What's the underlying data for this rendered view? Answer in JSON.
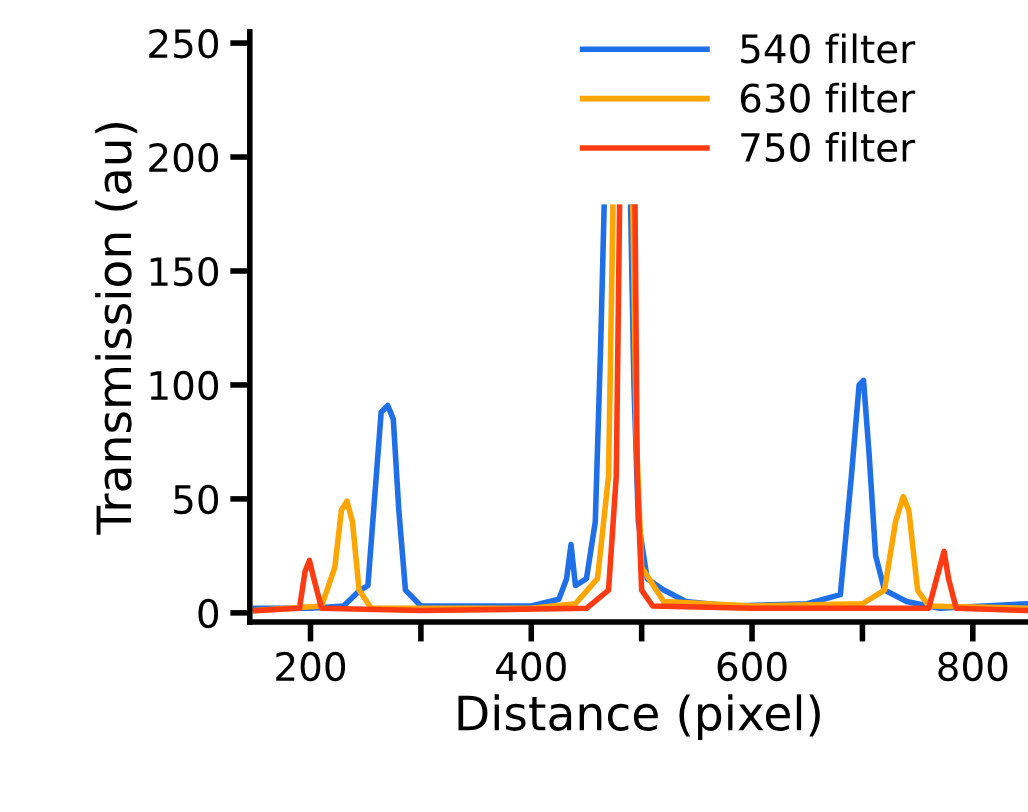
{
  "chart_data": {
    "type": "line",
    "xlabel": "Distance (pixel)",
    "ylabel": "Transmission (au)",
    "xlim": [
      145,
      850
    ],
    "ylim": [
      -4,
      255
    ],
    "xticks": [
      200,
      {
        "value": 300,
        "label": null
      },
      400,
      {
        "value": 500,
        "label": null
      },
      600,
      {
        "value": 700,
        "label": null
      },
      800
    ],
    "yticks": [
      0,
      50,
      100,
      150,
      200,
      250
    ],
    "grid": false,
    "legend": "top right",
    "line_style": "solid",
    "marker": "none",
    "series": [
      {
        "name": "540 filter",
        "color": "#1f6fe8",
        "x": [
          150,
          200,
          230,
          245,
          252,
          258,
          264,
          270,
          275,
          280,
          286,
          300,
          400,
          425,
          432,
          436,
          440,
          450,
          458,
          463,
          466,
          478,
          490,
          493,
          497,
          505,
          520,
          540,
          580,
          650,
          680,
          690,
          697,
          701,
          706,
          712,
          720,
          740,
          770,
          850
        ],
        "values": [
          2,
          2,
          3,
          10,
          12,
          50,
          88,
          91,
          85,
          45,
          10,
          3,
          3,
          6,
          15,
          30,
          12,
          15,
          40,
          120,
          178,
          null,
          178,
          100,
          40,
          15,
          10,
          5,
          3,
          4,
          8,
          60,
          100,
          102,
          70,
          25,
          10,
          5,
          2,
          4
        ]
      },
      {
        "name": "630 filter",
        "color": "#ffa500",
        "x": [
          150,
          210,
          222,
          228,
          233,
          238,
          244,
          255,
          400,
          440,
          460,
          470,
          474,
          483,
          492,
          495,
          500,
          520,
          600,
          700,
          720,
          730,
          737,
          742,
          750,
          760,
          850
        ],
        "values": [
          1,
          3,
          20,
          45,
          49,
          40,
          10,
          2,
          2,
          4,
          15,
          60,
          178,
          null,
          178,
          80,
          20,
          5,
          3,
          4,
          10,
          40,
          51,
          45,
          10,
          3,
          2
        ]
      },
      {
        "name": "750 filter",
        "color": "#ff3b14",
        "x": [
          150,
          190,
          195,
          199,
          203,
          210,
          300,
          450,
          470,
          477,
          480,
          487,
          494,
          496,
          500,
          510,
          600,
          760,
          770,
          774,
          778,
          785,
          850
        ],
        "values": [
          1,
          2,
          18,
          23,
          15,
          2,
          1,
          2,
          10,
          60,
          178,
          null,
          178,
          60,
          10,
          3,
          2,
          2,
          20,
          27,
          15,
          2,
          1
        ]
      }
    ]
  }
}
